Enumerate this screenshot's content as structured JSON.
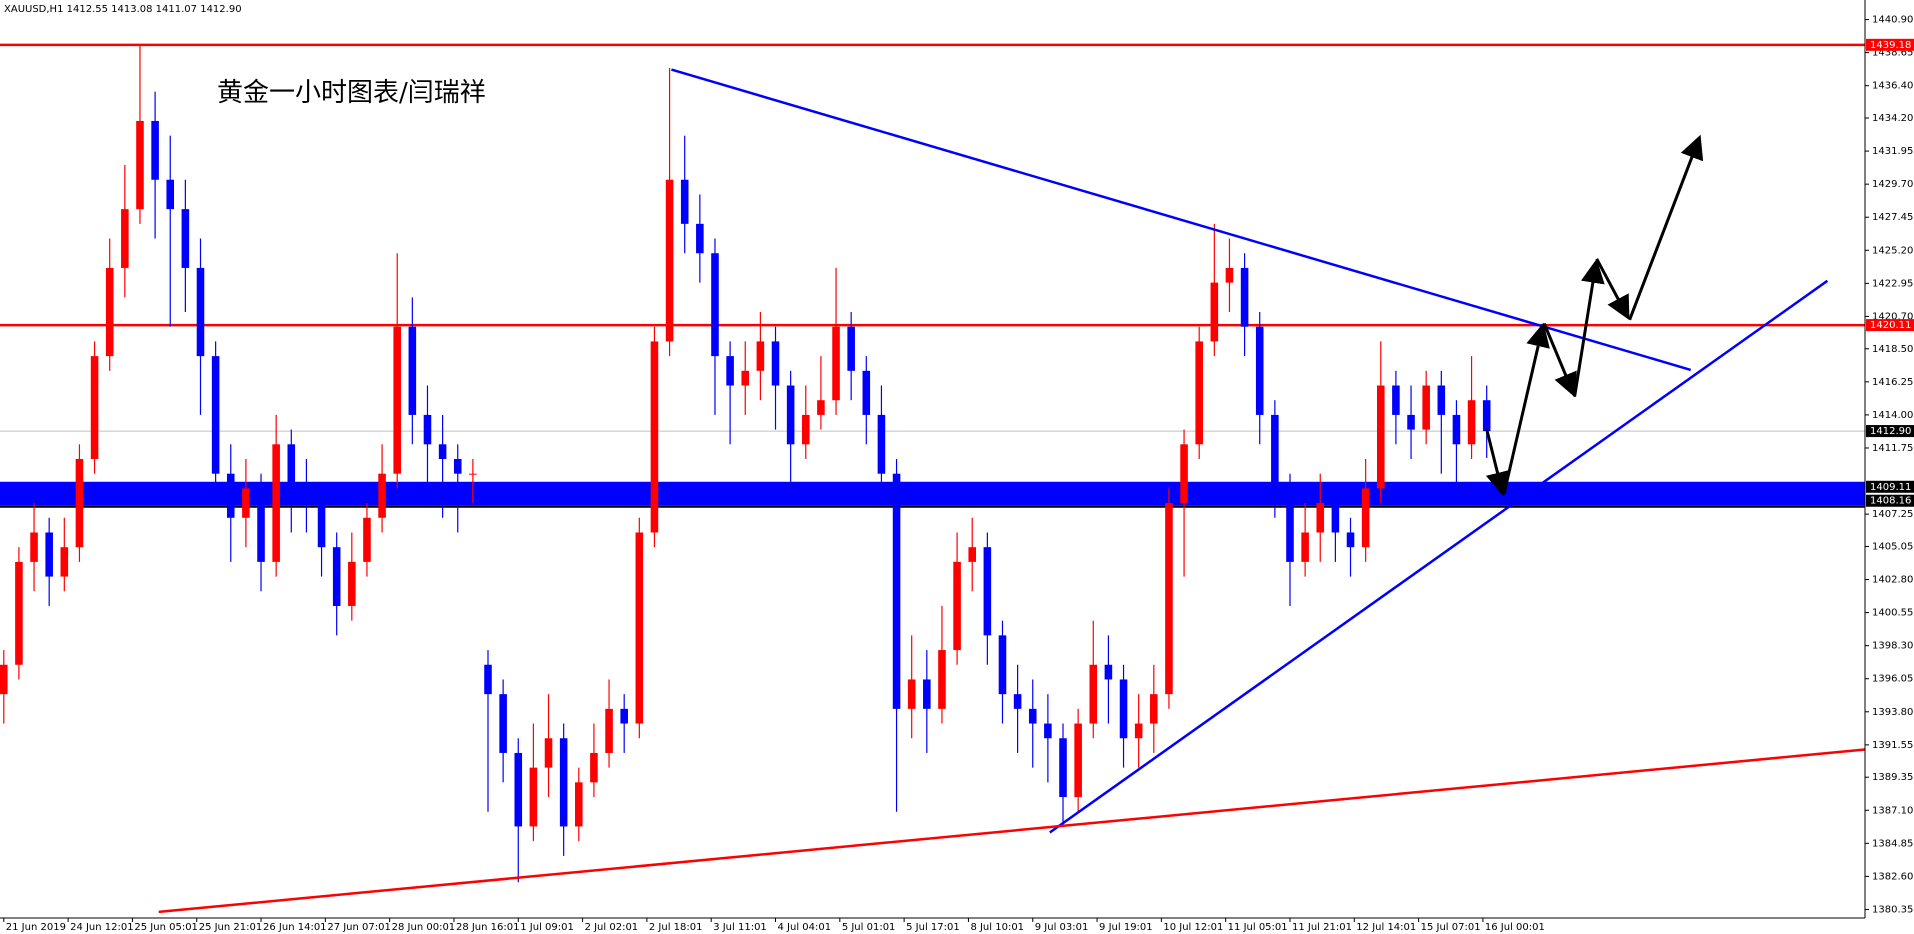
{
  "chart_data": {
    "type": "candlestick",
    "header": "XAUUSD,H1  1412.55 1413.08 1411.07 1412.90",
    "title": "黄金一小时图表/闫瑞祥",
    "up_color": "#ff0000",
    "down_color": "#0000ff",
    "x": [
      0,
      4,
      8,
      12,
      16,
      20,
      24,
      28,
      32,
      36,
      40,
      44,
      48,
      52,
      56,
      60,
      64,
      68,
      72,
      76,
      80,
      84,
      88,
      92,
      96,
      100,
      104,
      108,
      112,
      116,
      120,
      124,
      128,
      132,
      136,
      140,
      144,
      148,
      152,
      156,
      160,
      164,
      168,
      172,
      176,
      180,
      184,
      188,
      192,
      196,
      200,
      204,
      208,
      212,
      216,
      220,
      224,
      228,
      232,
      236,
      240,
      244,
      248,
      252,
      256,
      260,
      264,
      268,
      272,
      276,
      280,
      284,
      288,
      292,
      296,
      300,
      304,
      308,
      312,
      316,
      320,
      324,
      328,
      332,
      336,
      340,
      344,
      348,
      352,
      356,
      360,
      364,
      368,
      372,
      376,
      380,
      384,
      388,
      392
    ],
    "open": [
      1395,
      1397,
      1404,
      1406,
      1403,
      1405,
      1411,
      1418,
      1424,
      1428,
      1434,
      1430,
      1428,
      1424,
      1418,
      1410,
      1407,
      1409,
      1404,
      1412,
      1409,
      1408,
      1405,
      1401,
      1404,
      1407,
      1410,
      1420,
      1414,
      1412,
      1411,
      1410,
      1397,
      1395,
      1391,
      1386,
      1390,
      1392,
      1386,
      1389,
      1391,
      1394,
      1393,
      1406,
      1419,
      1430,
      1427,
      1425,
      1418,
      1416,
      1417,
      1419,
      1416,
      1412,
      1414,
      1415,
      1420,
      1417,
      1414,
      1410,
      1394,
      1396,
      1394,
      1398,
      1404,
      1405,
      1399,
      1395,
      1394,
      1393,
      1392,
      1388,
      1393,
      1397,
      1396,
      1392,
      1393,
      1395,
      1408,
      1412,
      1419,
      1423,
      1424,
      1420,
      1414,
      1409,
      1404,
      1406,
      1408,
      1406,
      1405,
      1409,
      1416,
      1414,
      1413,
      1416,
      1414,
      1412,
      1415
    ],
    "high": [
      1398,
      1405,
      1408,
      1407,
      1407,
      1412,
      1419,
      1426,
      1431,
      1439.18,
      1436,
      1433,
      1430,
      1426,
      1419,
      1412,
      1411,
      1410,
      1414,
      1413,
      1411,
      1409,
      1406,
      1406,
      1408,
      1412,
      1425,
      1422,
      1416,
      1414,
      1412,
      1411,
      1398,
      1396,
      1392,
      1393,
      1395,
      1393,
      1390,
      1393,
      1396,
      1395,
      1407,
      1420,
      1437.6,
      1433,
      1429,
      1426,
      1419,
      1419,
      1421,
      1420,
      1417,
      1416,
      1418,
      1424,
      1421,
      1418,
      1416,
      1411,
      1399,
      1398,
      1401,
      1406,
      1407,
      1406,
      1400,
      1397,
      1396,
      1395,
      1393,
      1394,
      1400,
      1399,
      1397,
      1395,
      1397,
      1409,
      1413,
      1420,
      1427,
      1426,
      1425,
      1421,
      1415,
      1410,
      1408,
      1410,
      1409,
      1407,
      1411,
      1419,
      1417,
      1416,
      1417,
      1417,
      1415,
      1418,
      1416
    ],
    "low": [
      1393,
      1396,
      1402,
      1401,
      1402,
      1404,
      1410,
      1417,
      1422,
      1427,
      1426,
      1420,
      1421,
      1414,
      1408,
      1404,
      1405,
      1402,
      1403,
      1406,
      1406,
      1403,
      1399,
      1400,
      1403,
      1406,
      1409,
      1412,
      1408,
      1407,
      1406,
      1408,
      1387,
      1389,
      1382.2,
      1385,
      1388,
      1384,
      1385,
      1388,
      1390,
      1391,
      1392,
      1405,
      1418,
      1425,
      1423,
      1414,
      1412,
      1414,
      1415,
      1413,
      1409,
      1411,
      1413,
      1414,
      1415,
      1412,
      1408,
      1387,
      1392,
      1391,
      1393,
      1397,
      1402,
      1397,
      1393,
      1391,
      1390,
      1389,
      1386,
      1387,
      1392,
      1393,
      1390,
      1390,
      1391,
      1394,
      1403,
      1411,
      1418,
      1421,
      1418,
      1412,
      1407,
      1401,
      1403,
      1404,
      1404,
      1403,
      1404,
      1408,
      1412,
      1411,
      1412,
      1410,
      1409,
      1411,
      1411.07
    ],
    "close": [
      1397,
      1404,
      1406,
      1403,
      1405,
      1411,
      1418,
      1424,
      1428,
      1434,
      1430,
      1428,
      1424,
      1418,
      1410,
      1407,
      1409,
      1404,
      1412,
      1409,
      1408,
      1405,
      1401,
      1404,
      1407,
      1410,
      1420,
      1414,
      1412,
      1411,
      1410,
      1410,
      1395,
      1391,
      1386,
      1390,
      1392,
      1386,
      1389,
      1391,
      1394,
      1393,
      1406,
      1419,
      1430,
      1427,
      1425,
      1418,
      1416,
      1417,
      1419,
      1416,
      1412,
      1414,
      1415,
      1420,
      1417,
      1414,
      1410,
      1394,
      1396,
      1394,
      1398,
      1404,
      1405,
      1399,
      1395,
      1394,
      1393,
      1392,
      1388,
      1393,
      1397,
      1396,
      1392,
      1393,
      1395,
      1408,
      1412,
      1419,
      1423,
      1424,
      1420,
      1414,
      1409,
      1404,
      1406,
      1408,
      1406,
      1405,
      1409,
      1416,
      1414,
      1413,
      1416,
      1414,
      1412,
      1415,
      1412.9
    ],
    "xlim": [
      -1,
      492
    ],
    "xticks": [
      {
        "value": 0,
        "label": "21 Jun 2019"
      },
      {
        "value": 17,
        "label": "24 Jun 12:01"
      },
      {
        "value": 34,
        "label": "25 Jun 05:01"
      },
      {
        "value": 51,
        "label": "25 Jun 21:01"
      },
      {
        "value": 68,
        "label": "26 Jun 14:01"
      },
      {
        "value": 85,
        "label": "27 Jun 07:01"
      },
      {
        "value": 102,
        "label": "28 Jun 00:01"
      },
      {
        "value": 119,
        "label": "28 Jun 16:01"
      },
      {
        "value": 136,
        "label": "1 Jul 09:01"
      },
      {
        "value": 153,
        "label": "2 Jul 02:01"
      },
      {
        "value": 170,
        "label": "2 Jul 18:01"
      },
      {
        "value": 187,
        "label": "3 Jul 11:01"
      },
      {
        "value": 204,
        "label": "4 Jul 04:01"
      },
      {
        "value": 221,
        "label": "5 Jul 01:01"
      },
      {
        "value": 238,
        "label": "5 Jul 17:01"
      },
      {
        "value": 255,
        "label": "8 Jul 10:01"
      },
      {
        "value": 272,
        "label": "9 Jul 03:01"
      },
      {
        "value": 289,
        "label": "9 Jul 19:01"
      },
      {
        "value": 306,
        "label": "10 Jul 12:01"
      },
      {
        "value": 323,
        "label": "11 Jul 05:01"
      },
      {
        "value": 340,
        "label": "11 Jul 21:01"
      },
      {
        "value": 357,
        "label": "12 Jul 14:01"
      },
      {
        "value": 374,
        "label": "15 Jul 07:01"
      },
      {
        "value": 391,
        "label": "16 Jul 00:01"
      }
    ],
    "ylim": [
      1379.77,
      1442.23
    ],
    "yticks": [
      1380.35,
      {
        "value": 1382.6,
        "label": "1382.60"
      },
      1384.85,
      {
        "value": 1387.1,
        "label": "1387.10"
      },
      1389.35,
      1391.55,
      {
        "value": 1393.8,
        "label": "1393.80"
      },
      1396.05,
      {
        "value": 1398.3,
        "label": "1398.30"
      },
      1400.55,
      {
        "value": 1402.8,
        "label": "1402.80"
      },
      1405.05,
      1407.25,
      1411.75,
      {
        "value": 1414,
        "label": "1414.00"
      },
      1416.25,
      {
        "value": 1418.5,
        "label": "1418.50"
      },
      {
        "value": 1420.7,
        "label": "1420.70"
      },
      1422.95,
      {
        "value": 1425.2,
        "label": "1425.20"
      },
      1427.45,
      {
        "value": 1429.7,
        "label": "1429.70"
      },
      1431.95,
      {
        "value": 1434.2,
        "label": "1434.20"
      },
      {
        "value": 1436.4,
        "label": "1436.40"
      },
      1438.65,
      {
        "value": 1440.9,
        "label": "1440.90"
      }
    ],
    "levels": [
      {
        "value": 1439.18,
        "color": "#ff0000"
      },
      {
        "value": 1420.11,
        "color": "#ff0000"
      }
    ],
    "zone": {
      "high": 1409.11,
      "low": 1408.16,
      "color": "#0000ff"
    },
    "last_price": {
      "value": 1412.9,
      "label": "1412.90"
    }
  }
}
